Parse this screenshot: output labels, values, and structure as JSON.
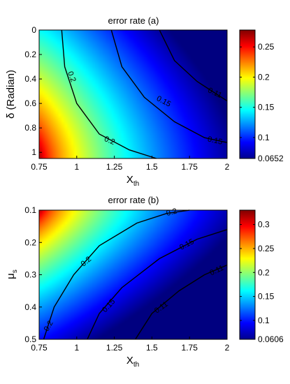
{
  "chart_data": [
    {
      "type": "heatmap",
      "title": "error rate (a)",
      "xlabel": "X",
      "xlabel_subscript": "th",
      "ylabel": "δ (Radian)",
      "xlim": [
        0.75,
        2
      ],
      "ylim": [
        0,
        1.05
      ],
      "y_reversed": true,
      "xticks": [
        "0.75",
        "1",
        "1.25",
        "1.5",
        "1.75",
        "2"
      ],
      "yticks": [
        "0",
        "0.2",
        "0.4",
        "0.6",
        "0.8",
        "1"
      ],
      "colormap": "jet",
      "color_range": [
        0.0652,
        0.278
      ],
      "colorbar_ticks": [
        "0.25",
        "0.2",
        "0.15",
        "0.1",
        "0.0652"
      ],
      "contours": [
        {
          "level_label": "0.2",
          "points": [
            [
              0.9,
              0.0
            ],
            [
              0.92,
              0.3
            ],
            [
              1.0,
              0.6
            ],
            [
              1.15,
              0.85
            ],
            [
              1.35,
              0.98
            ],
            [
              1.53,
              1.05
            ]
          ]
        },
        {
          "level_label": "0.15",
          "points": [
            [
              1.23,
              0.0
            ],
            [
              1.3,
              0.3
            ],
            [
              1.45,
              0.55
            ],
            [
              1.65,
              0.75
            ],
            [
              1.85,
              0.88
            ],
            [
              2.0,
              0.92
            ]
          ]
        },
        {
          "level_label": "0.11",
          "points": [
            [
              1.55,
              0.0
            ],
            [
              1.65,
              0.25
            ],
            [
              1.8,
              0.42
            ],
            [
              2.0,
              0.58
            ]
          ]
        }
      ],
      "contour_labels": [
        {
          "text": "0.2",
          "x": 0.97,
          "y": 0.38,
          "angle": 70
        },
        {
          "text": "0.15",
          "x": 1.58,
          "y": 0.58,
          "angle": 28
        },
        {
          "text": "0.11",
          "x": 1.92,
          "y": 0.51,
          "angle": 25
        },
        {
          "text": "0.15",
          "x": 1.92,
          "y": 0.9,
          "angle": 12
        },
        {
          "text": "0.2",
          "x": 1.22,
          "y": 0.9,
          "angle": 22
        }
      ]
    },
    {
      "type": "heatmap",
      "title": "error rate (b)",
      "xlabel": "X",
      "xlabel_subscript": "th",
      "ylabel": "μ",
      "ylabel_subscript": "s",
      "xlim": [
        0.75,
        2
      ],
      "ylim": [
        0.1,
        0.5
      ],
      "y_reversed": true,
      "xticks": [
        "0.75",
        "1",
        "1.25",
        "1.5",
        "1.75",
        "2"
      ],
      "yticks": [
        "0.1",
        "0.2",
        "0.3",
        "0.4",
        "0.5"
      ],
      "colormap": "jet",
      "color_range": [
        0.0606,
        0.33
      ],
      "colorbar_ticks": [
        "0.3",
        "0.25",
        "0.2",
        "0.15",
        "0.1",
        "0.0606"
      ],
      "contours": [
        {
          "level_label": "0.2",
          "points": [
            [
              0.78,
              0.5
            ],
            [
              0.85,
              0.4
            ],
            [
              0.98,
              0.3
            ],
            [
              1.15,
              0.21
            ],
            [
              1.4,
              0.14
            ],
            [
              1.6,
              0.11
            ],
            [
              1.75,
              0.1
            ]
          ]
        },
        {
          "level_label": "0.15",
          "points": [
            [
              1.07,
              0.5
            ],
            [
              1.15,
              0.42
            ],
            [
              1.3,
              0.34
            ],
            [
              1.55,
              0.25
            ],
            [
              1.8,
              0.19
            ],
            [
              2.0,
              0.16
            ]
          ]
        },
        {
          "level_label": "0.11",
          "points": [
            [
              1.39,
              0.5
            ],
            [
              1.5,
              0.42
            ],
            [
              1.68,
              0.35
            ],
            [
              1.85,
              0.3
            ],
            [
              2.0,
              0.27
            ]
          ]
        }
      ],
      "contour_labels": [
        {
          "text": "0.2",
          "x": 0.81,
          "y": 0.458,
          "angle": -60
        },
        {
          "text": "0.2",
          "x": 1.06,
          "y": 0.258,
          "angle": -40
        },
        {
          "text": "0.2",
          "x": 1.63,
          "y": 0.105,
          "angle": -15
        },
        {
          "text": "0.15",
          "x": 1.21,
          "y": 0.395,
          "angle": -48
        },
        {
          "text": "0.15",
          "x": 1.73,
          "y": 0.205,
          "angle": -28
        },
        {
          "text": "0.11",
          "x": 1.56,
          "y": 0.4,
          "angle": -35
        },
        {
          "text": "0.11",
          "x": 1.93,
          "y": 0.285,
          "angle": -25
        }
      ]
    }
  ]
}
